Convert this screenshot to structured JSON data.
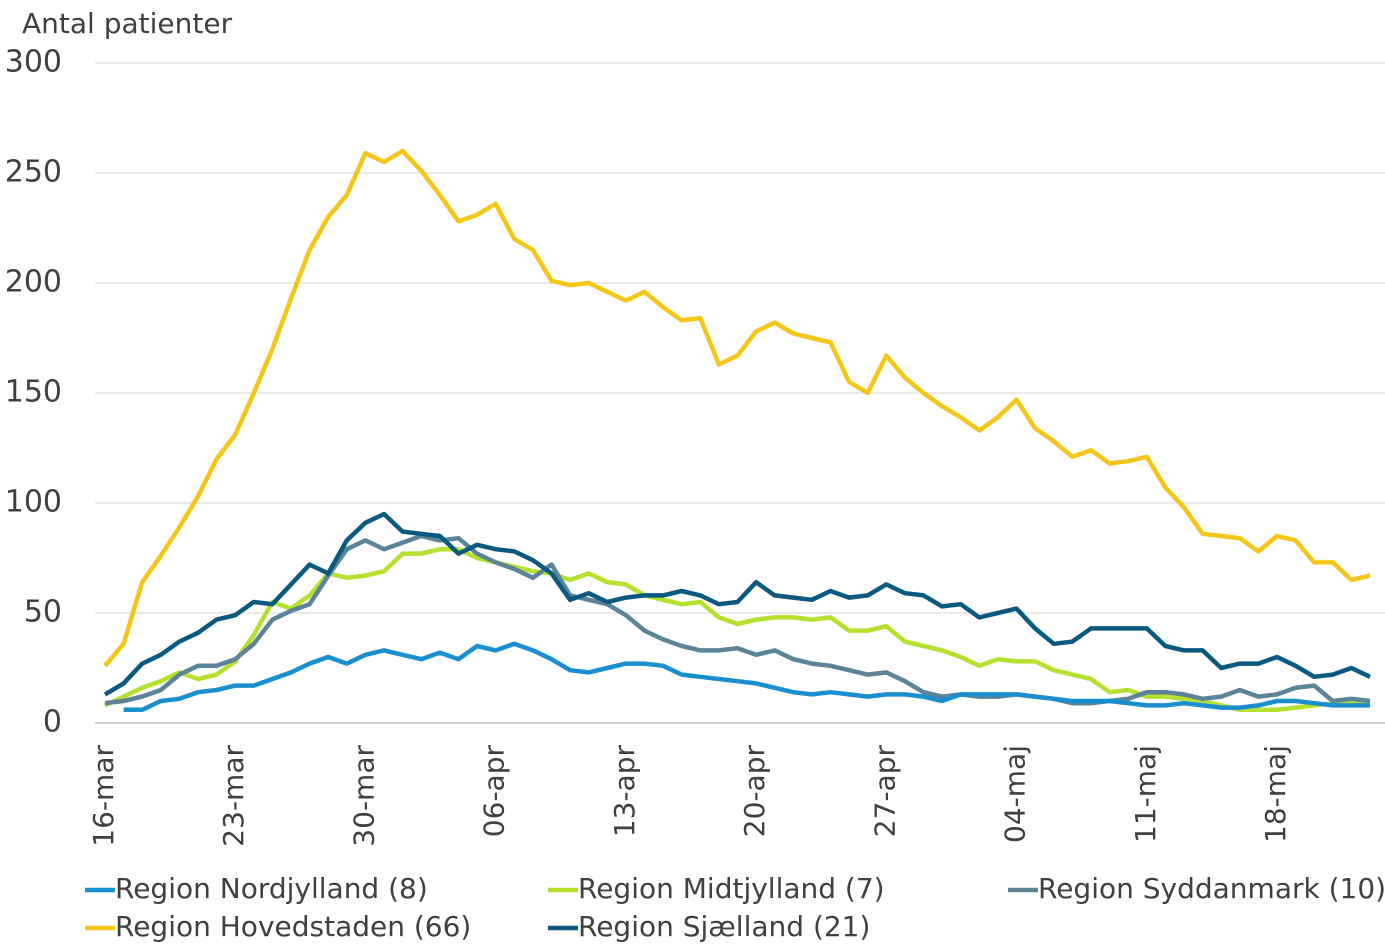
{
  "chart_data": {
    "type": "line",
    "y_label": "Antal patienter",
    "categories": [
      "16-mar",
      null,
      null,
      null,
      null,
      null,
      null,
      "23-mar",
      null,
      null,
      null,
      null,
      null,
      null,
      "30-mar",
      null,
      null,
      null,
      null,
      null,
      null,
      "06-apr",
      null,
      null,
      null,
      null,
      null,
      null,
      "13-apr",
      null,
      null,
      null,
      null,
      null,
      null,
      "20-apr",
      null,
      null,
      null,
      null,
      null,
      null,
      "27-apr",
      null,
      null,
      null,
      null,
      null,
      null,
      "04-maj",
      null,
      null,
      null,
      null,
      null,
      null,
      "11-maj",
      null,
      null,
      null,
      null,
      null,
      null,
      "18-maj",
      null,
      null,
      null,
      null,
      null
    ],
    "ylim": [
      0,
      300
    ],
    "yticks": [
      0,
      50,
      100,
      150,
      200,
      250,
      300
    ],
    "grid": true,
    "series": [
      {
        "name": "Region Nordjylland (8)",
        "color": "#1a8fd0",
        "values": [
          null,
          6,
          6,
          10,
          11,
          14,
          15,
          17,
          17,
          20,
          23,
          27,
          30,
          27,
          31,
          33,
          31,
          29,
          32,
          29,
          35,
          33,
          36,
          33,
          29,
          24,
          23,
          25,
          27,
          27,
          26,
          22,
          21,
          20,
          19,
          18,
          16,
          14,
          13,
          14,
          13,
          12,
          13,
          13,
          12,
          10,
          13,
          13,
          13,
          13,
          12,
          11,
          10,
          10,
          10,
          9,
          8,
          8,
          9,
          8,
          7,
          7,
          8,
          10,
          10,
          9,
          8,
          8,
          8
        ]
      },
      {
        "name": "Region Midtjylland (7)",
        "color": "#b5e02d",
        "values": [
          8,
          12,
          16,
          19,
          23,
          20,
          22,
          28,
          40,
          55,
          52,
          58,
          68,
          66,
          67,
          69,
          77,
          77,
          79,
          79,
          75,
          73,
          71,
          69,
          68,
          65,
          68,
          64,
          63,
          58,
          56,
          54,
          55,
          48,
          45,
          47,
          48,
          48,
          47,
          48,
          42,
          42,
          44,
          37,
          35,
          33,
          30,
          26,
          29,
          28,
          28,
          24,
          22,
          20,
          14,
          15,
          12,
          12,
          11,
          10,
          8,
          6,
          6,
          6,
          7,
          8,
          9,
          9,
          9
        ]
      },
      {
        "name": "Region Syddanmark (10)",
        "color": "#5b8499",
        "values": [
          9,
          10,
          12,
          15,
          22,
          26,
          26,
          29,
          36,
          47,
          51,
          54,
          67,
          79,
          83,
          79,
          82,
          85,
          83,
          84,
          77,
          73,
          70,
          66,
          72,
          58,
          56,
          54,
          49,
          42,
          38,
          35,
          33,
          33,
          34,
          31,
          33,
          29,
          27,
          26,
          24,
          22,
          23,
          19,
          14,
          12,
          13,
          12,
          12,
          13,
          12,
          11,
          9,
          9,
          10,
          11,
          14,
          14,
          13,
          11,
          12,
          15,
          12,
          13,
          16,
          17,
          10,
          11,
          10
        ]
      },
      {
        "name": "Region Hovedstaden (66)",
        "color": "#f5c518",
        "values": [
          26,
          36,
          64,
          76,
          89,
          103,
          120,
          131,
          150,
          170,
          193,
          215,
          230,
          240,
          259,
          255,
          260,
          251,
          240,
          228,
          231,
          236,
          220,
          215,
          201,
          199,
          200,
          196,
          192,
          196,
          189,
          183,
          184,
          163,
          167,
          178,
          182,
          177,
          175,
          173,
          155,
          150,
          167,
          157,
          150,
          144,
          139,
          133,
          139,
          147,
          134,
          128,
          121,
          124,
          118,
          119,
          121,
          107,
          98,
          86,
          85,
          84,
          78,
          85,
          83,
          73,
          73,
          65,
          67
        ]
      },
      {
        "name": "Region Sjælland (21)",
        "color": "#0a5a80",
        "values": [
          13,
          18,
          27,
          31,
          37,
          41,
          47,
          49,
          55,
          54,
          63,
          72,
          68,
          83,
          91,
          95,
          87,
          86,
          85,
          77,
          81,
          79,
          78,
          74,
          68,
          56,
          59,
          55,
          57,
          58,
          58,
          60,
          58,
          54,
          55,
          64,
          58,
          57,
          56,
          60,
          57,
          58,
          63,
          59,
          58,
          53,
          54,
          48,
          50,
          52,
          43,
          36,
          37,
          43,
          43,
          43,
          43,
          35,
          33,
          33,
          25,
          27,
          27,
          30,
          26,
          21,
          22,
          25,
          21
        ]
      }
    ]
  }
}
